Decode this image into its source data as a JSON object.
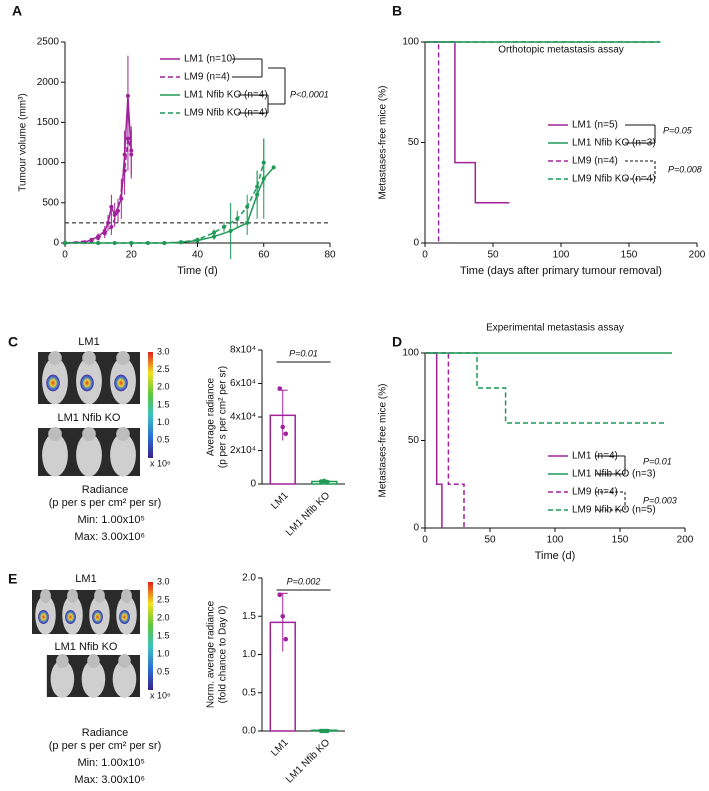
{
  "chart_data": [
    {
      "type": "line",
      "panel": "A",
      "xlabel": "Time (d)",
      "ylabel": "Tumour volume (mm³)",
      "xlim": [
        0,
        80
      ],
      "xticks": [
        0,
        20,
        40,
        60,
        80
      ],
      "ylim": [
        0,
        2500
      ],
      "yticks": [
        0,
        500,
        1000,
        1500,
        2000,
        2500
      ],
      "hline": 250,
      "annotations": [
        "P<0.0001"
      ],
      "series": [
        {
          "name": "LM1 (n=10)",
          "color": "#a0229a",
          "dash": false,
          "x": [
            0,
            6,
            8,
            10,
            12,
            13,
            14,
            15,
            17,
            18,
            19,
            20
          ],
          "values": [
            0,
            10,
            40,
            80,
            150,
            250,
            450,
            350,
            550,
            1100,
            1830,
            1100
          ],
          "errors": [
            0,
            10,
            20,
            40,
            60,
            100,
            150,
            150,
            250,
            300,
            500,
            300
          ]
        },
        {
          "name": "LM9 (n=4)",
          "color": "#a0229a",
          "dash": true,
          "x": [
            0,
            8,
            10,
            12,
            14,
            16,
            18,
            19,
            20
          ],
          "values": [
            0,
            30,
            60,
            120,
            200,
            400,
            900,
            1300,
            1150
          ],
          "errors": [
            0,
            20,
            30,
            60,
            100,
            150,
            300,
            400,
            300
          ]
        },
        {
          "name": "LM1 Nfib KO (n=4)",
          "color": "#1f9a56",
          "dash": false,
          "x": [
            0,
            10,
            15,
            20,
            25,
            30,
            35,
            40,
            45,
            50,
            55,
            58,
            60,
            63
          ],
          "values": [
            0,
            0,
            0,
            0,
            0,
            0,
            10,
            30,
            80,
            150,
            250,
            600,
            800,
            940
          ],
          "errors": [
            0,
            0,
            0,
            0,
            0,
            0,
            5,
            20,
            40,
            350,
            150,
            300,
            500,
            0
          ]
        },
        {
          "name": "LM9 Nfib KO (n=4)",
          "color": "#1f9a56",
          "dash": true,
          "x": [
            0,
            10,
            20,
            30,
            35,
            40,
            45,
            48,
            52,
            55,
            58,
            60
          ],
          "values": [
            0,
            0,
            0,
            0,
            10,
            40,
            130,
            200,
            300,
            450,
            700,
            1000
          ],
          "errors": [
            0,
            0,
            0,
            0,
            5,
            20,
            40,
            60,
            100,
            150,
            200,
            300
          ]
        }
      ]
    },
    {
      "type": "line",
      "panel": "B",
      "title": "Orthotopic metastasis assay",
      "xlabel": "Time (days after primary tumour removal)",
      "ylabel": "Metastases-free mice (%)",
      "xlim": [
        0,
        200
      ],
      "xticks": [
        0,
        50,
        100,
        150,
        200
      ],
      "ylim": [
        0,
        100
      ],
      "yticks": [
        0,
        50,
        100
      ],
      "annotations": [
        "P=0.05",
        "P=0.008"
      ],
      "series": [
        {
          "name": "LM1 (n=5)",
          "color": "#a0229a",
          "dash": false,
          "x": [
            0,
            22,
            22,
            37,
            37,
            62
          ],
          "values": [
            100,
            100,
            40,
            40,
            20,
            20
          ]
        },
        {
          "name": "LM1 Nfib KO (n=3)",
          "color": "#1f9a56",
          "dash": false,
          "x": [
            0,
            173
          ],
          "values": [
            100,
            100
          ]
        },
        {
          "name": "LM9 (n=4)",
          "color": "#a0229a",
          "dash": true,
          "x": [
            0,
            10,
            10
          ],
          "values": [
            100,
            100,
            0
          ]
        },
        {
          "name": "LM9 Nfib KO (n=4)",
          "color": "#1f9a56",
          "dash": true,
          "x": [
            0,
            173
          ],
          "values": [
            100,
            100
          ]
        }
      ]
    },
    {
      "type": "bar",
      "panel": "C",
      "ylabel": [
        "Average radiance",
        "(p per s per cm² per sr)"
      ],
      "categories": [
        "LM1",
        "LM1 Nfib KO"
      ],
      "colors": [
        "#a0229a",
        "#1f9a56"
      ],
      "values": [
        41000,
        1500
      ],
      "errors": [
        15000,
        500
      ],
      "points": [
        [
          57000,
          34000,
          30000
        ],
        [
          1500,
          1800,
          1200
        ]
      ],
      "ylim": [
        0,
        80000
      ],
      "yticks": [
        0,
        {
          "value": 20000,
          "label": "2x10⁴"
        },
        {
          "value": 40000,
          "label": "4x10⁴"
        },
        {
          "value": 60000,
          "label": "6x10⁴"
        },
        {
          "value": 80000,
          "label": "8x10⁴"
        }
      ],
      "annotations": [
        "P=0.01"
      ],
      "imaging": {
        "labels": [
          "LM1",
          "LM1 Nfib KO"
        ],
        "colorbar_lim": [
          0,
          3
        ],
        "colorbar_ticks": [
          0.5,
          {
            "value": 1,
            "label": "1.0"
          },
          1.5,
          {
            "value": 2,
            "label": "2.0"
          },
          2.5,
          {
            "value": 3,
            "label": "3.0"
          }
        ],
        "colorbar_multiplier": "x 10⁶",
        "colorbar_label": [
          "Radiance",
          "(p per s per cm² per sr)"
        ],
        "min_label": "Min: 1.00x10⁵",
        "max_label": "Max: 3.00x10⁶"
      }
    },
    {
      "type": "line",
      "panel": "D",
      "title": "Experimental metastasis assay",
      "xlabel": "Time (d)",
      "ylabel": "Metastases-free mice (%)",
      "xlim": [
        0,
        200
      ],
      "xticks": [
        0,
        50,
        100,
        150,
        200
      ],
      "ylim": [
        0,
        100
      ],
      "yticks": [
        0,
        50,
        100
      ],
      "annotations": [
        "P=0.01",
        "P=0.003"
      ],
      "series": [
        {
          "name": "LM1 (n=4)",
          "color": "#a0229a",
          "dash": false,
          "x": [
            0,
            9,
            9,
            13,
            13
          ],
          "values": [
            100,
            100,
            25,
            25,
            0
          ]
        },
        {
          "name": "LM1 Nfib KO (n=3)",
          "color": "#1f9a56",
          "dash": false,
          "x": [
            0,
            190
          ],
          "values": [
            100,
            100
          ]
        },
        {
          "name": "LM9 (n=4)",
          "color": "#a0229a",
          "dash": true,
          "x": [
            0,
            18,
            18,
            30,
            30
          ],
          "values": [
            100,
            100,
            25,
            25,
            0
          ]
        },
        {
          "name": "LM9 Nfib KO (n=5)",
          "color": "#1f9a56",
          "dash": true,
          "x": [
            0,
            40,
            40,
            62,
            62,
            185
          ],
          "values": [
            100,
            100,
            80,
            80,
            60,
            60
          ]
        }
      ]
    },
    {
      "type": "bar",
      "panel": "E",
      "ylabel": [
        "Norm. average radiance",
        "(fold chance to Day 0)"
      ],
      "categories": [
        "LM1",
        "LM1 Nfib KO"
      ],
      "colors": [
        "#a0229a",
        "#1f9a56"
      ],
      "values": [
        1.42,
        0.01
      ],
      "errors": [
        0.38,
        0.01
      ],
      "points": [
        [
          1.78,
          1.5,
          1.2
        ],
        [
          0,
          0,
          0
        ]
      ],
      "ylim": [
        0,
        2
      ],
      "yticks": [
        {
          "value": 0,
          "label": "0.0"
        },
        0.5,
        {
          "value": 1,
          "label": "1.0"
        },
        1.5,
        {
          "value": 2,
          "label": "2.0"
        }
      ],
      "annotations": [
        "P=0.002"
      ],
      "imaging": {
        "labels": [
          "LM1",
          "LM1 Nfib KO"
        ],
        "colorbar_lim": [
          0,
          3
        ],
        "colorbar_ticks": [
          0.5,
          {
            "value": 1,
            "label": "1.0"
          },
          1.5,
          {
            "value": 2,
            "label": "2.0"
          },
          2.5,
          {
            "value": 3,
            "label": "3.0"
          }
        ],
        "colorbar_multiplier": "x 10⁶",
        "colorbar_label": [
          "Radiance",
          "(p per s per cm² per sr)"
        ],
        "min_label": "Min: 1.00x10⁵",
        "max_label": "Max: 3.00x10⁶"
      }
    }
  ]
}
